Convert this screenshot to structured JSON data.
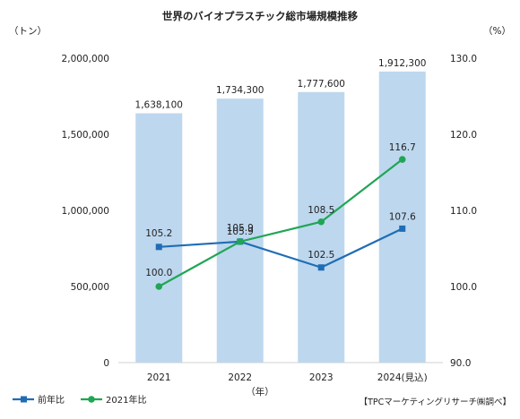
{
  "chart_data": {
    "type": "bar",
    "title": "世界のバイオプラスチック総市場規模推移",
    "left_unit": "（トン）",
    "right_unit": "（%）",
    "xlabel": "（年）",
    "source": "【TPCマーケティングリサーチ㈱調べ】",
    "categories": [
      "2021",
      "2022",
      "2023",
      "2024(見込)"
    ],
    "left_axis": {
      "min": 0,
      "max": 2000000,
      "ticks": [
        "0",
        "500,000",
        "1,000,000",
        "1,500,000",
        "2,000,000"
      ]
    },
    "right_axis": {
      "min": 90,
      "max": 130,
      "ticks": [
        "90.0",
        "100.0",
        "110.0",
        "120.0",
        "130.0"
      ]
    },
    "bars": {
      "axis": "left",
      "color": "#bdd7ee",
      "values": [
        1638100,
        1734300,
        1777600,
        1912300
      ],
      "labels": [
        "1,638,100",
        "1,734,300",
        "1,777,600",
        "1,912,300"
      ]
    },
    "series": [
      {
        "name": "前年比",
        "axis": "right",
        "color": "#1f6db5",
        "marker": "square",
        "values": [
          105.2,
          105.9,
          102.5,
          107.6
        ],
        "labels": [
          "105.2",
          "105.9",
          "102.5",
          "107.6"
        ]
      },
      {
        "name": "2021年比",
        "axis": "right",
        "color": "#1fa654",
        "marker": "circle",
        "values": [
          100.0,
          105.9,
          108.5,
          116.7
        ],
        "labels": [
          "100.0",
          "105.9",
          "108.5",
          "116.7"
        ]
      }
    ],
    "grid": false,
    "legend": "bottom-left"
  }
}
